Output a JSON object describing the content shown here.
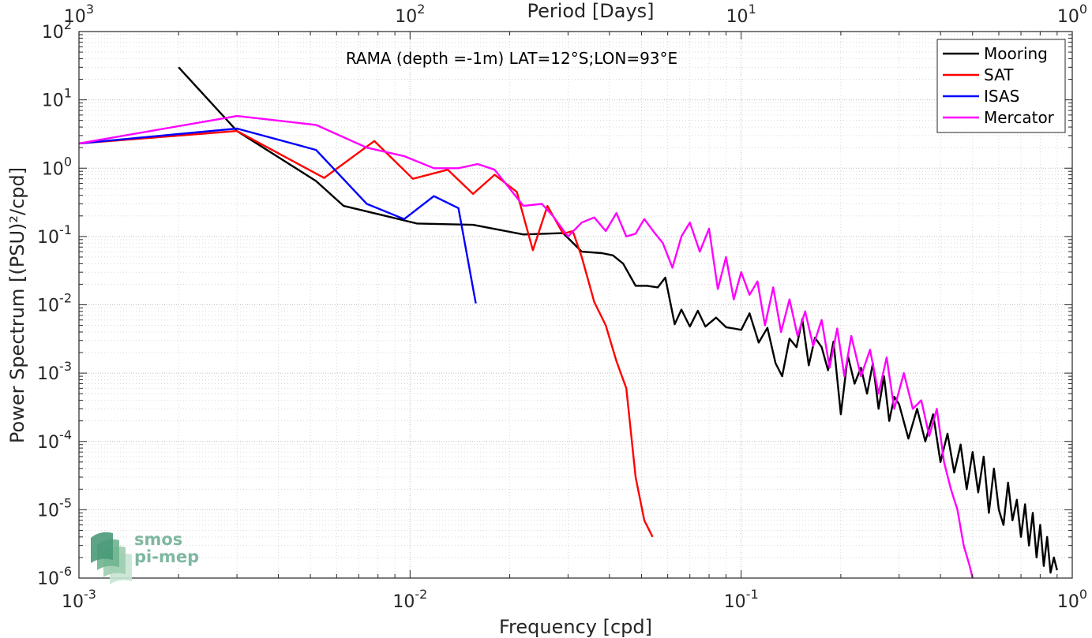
{
  "chart_data": {
    "type": "line",
    "title": "RAMA (depth =-1m) LAT=12°S;LON=93°E",
    "xlabel": "Frequency [cpd]",
    "ylabel": "Power Spectrum [(PSU)²/cpd]",
    "top_xlabel": "Period [Days]",
    "x_scale": "log",
    "y_scale": "log",
    "xlim": [
      0.001,
      1
    ],
    "ylim": [
      1e-06,
      100
    ],
    "top_xlim": [
      1000,
      1
    ],
    "grid": true,
    "legend_position": "top-right",
    "x_ticks": [
      {
        "value": 0.001,
        "base": "10",
        "exp": "-3"
      },
      {
        "value": 0.01,
        "base": "10",
        "exp": "-2"
      },
      {
        "value": 0.1,
        "base": "10",
        "exp": "-1"
      },
      {
        "value": 1,
        "base": "10",
        "exp": "0"
      }
    ],
    "top_ticks": [
      {
        "value": 1000,
        "base": "10",
        "exp": "3"
      },
      {
        "value": 100,
        "base": "10",
        "exp": "2"
      },
      {
        "value": 10,
        "base": "10",
        "exp": "1"
      },
      {
        "value": 1,
        "base": "10",
        "exp": "0"
      }
    ],
    "y_ticks": [
      {
        "value": 100,
        "base": "10",
        "exp": "2"
      },
      {
        "value": 10,
        "base": "10",
        "exp": "1"
      },
      {
        "value": 1,
        "base": "10",
        "exp": "0"
      },
      {
        "value": 0.1,
        "base": "10",
        "exp": "-1"
      },
      {
        "value": 0.01,
        "base": "10",
        "exp": "-2"
      },
      {
        "value": 0.001,
        "base": "10",
        "exp": "-3"
      },
      {
        "value": 0.0001,
        "base": "10",
        "exp": "-4"
      },
      {
        "value": 1e-05,
        "base": "10",
        "exp": "-5"
      },
      {
        "value": 1e-06,
        "base": "10",
        "exp": "-6"
      }
    ],
    "series": [
      {
        "name": "Mooring",
        "color": "#000000",
        "x": [
          0.002,
          0.003,
          0.0052,
          0.0063,
          0.0105,
          0.0155,
          0.022,
          0.029,
          0.033,
          0.038,
          0.041,
          0.044,
          0.048,
          0.052,
          0.056,
          0.059,
          0.063,
          0.066,
          0.07,
          0.074,
          0.078,
          0.084,
          0.09,
          0.095,
          0.1,
          0.106,
          0.113,
          0.12,
          0.127,
          0.133,
          0.14,
          0.147,
          0.153,
          0.16,
          0.167,
          0.175,
          0.183,
          0.19,
          0.2,
          0.21,
          0.22,
          0.23,
          0.24,
          0.25,
          0.26,
          0.27,
          0.28,
          0.29,
          0.3,
          0.32,
          0.34,
          0.36,
          0.38,
          0.4,
          0.42,
          0.44,
          0.46,
          0.48,
          0.5,
          0.52,
          0.54,
          0.56,
          0.58,
          0.6,
          0.62,
          0.64,
          0.66,
          0.68,
          0.7,
          0.72,
          0.74,
          0.76,
          0.78,
          0.8,
          0.82,
          0.84,
          0.86,
          0.88,
          0.9
        ],
        "y": [
          30,
          3.5,
          0.65,
          0.28,
          0.155,
          0.148,
          0.107,
          0.112,
          0.06,
          0.057,
          0.053,
          0.04,
          0.019,
          0.019,
          0.018,
          0.025,
          0.0052,
          0.0085,
          0.0048,
          0.0082,
          0.0048,
          0.0065,
          0.0047,
          0.0045,
          0.0043,
          0.0075,
          0.0028,
          0.0046,
          0.0014,
          0.0009,
          0.0032,
          0.0024,
          0.0062,
          0.0013,
          0.0033,
          0.0024,
          0.0011,
          0.0029,
          0.00025,
          0.0018,
          0.0007,
          0.0012,
          0.0005,
          0.0014,
          0.0003,
          0.0009,
          0.0002,
          0.00045,
          0.00035,
          0.00011,
          0.0003,
          0.0001,
          0.00025,
          5e-05,
          0.00013,
          3.5e-05,
          9e-05,
          2e-05,
          7e-05,
          1.8e-05,
          6e-05,
          9e-06,
          4e-05,
          1e-05,
          6e-06,
          2.5e-05,
          7e-06,
          1.4e-05,
          4e-06,
          1.2e-05,
          3e-06,
          9e-06,
          2e-06,
          6e-06,
          1.5e-06,
          4e-06,
          1.2e-06,
          2e-06,
          1.3e-06
        ]
      },
      {
        "name": "SAT",
        "color": "#ff0000",
        "x": [
          0.001,
          0.003,
          0.0055,
          0.0078,
          0.0102,
          0.013,
          0.0155,
          0.018,
          0.021,
          0.0235,
          0.026,
          0.029,
          0.031,
          0.033,
          0.036,
          0.039,
          0.042,
          0.045,
          0.048,
          0.051,
          0.054
        ],
        "y": [
          2.3,
          3.5,
          0.72,
          2.5,
          0.7,
          0.95,
          0.42,
          0.8,
          0.45,
          0.063,
          0.28,
          0.11,
          0.12,
          0.05,
          0.011,
          0.005,
          0.0015,
          0.0006,
          3e-05,
          7e-06,
          4e-06
        ]
      },
      {
        "name": "ISAS",
        "color": "#0000ff",
        "x": [
          0.001,
          0.003,
          0.0052,
          0.0074,
          0.0096,
          0.0118,
          0.014,
          0.0158
        ],
        "y": [
          2.3,
          3.8,
          1.85,
          0.3,
          0.18,
          0.39,
          0.26,
          0.0105
        ]
      },
      {
        "name": "Mercator",
        "color": "#ff00ff",
        "x": [
          0.001,
          0.003,
          0.0052,
          0.0074,
          0.0096,
          0.0118,
          0.014,
          0.016,
          0.018,
          0.02,
          0.022,
          0.025,
          0.027,
          0.03,
          0.033,
          0.036,
          0.039,
          0.042,
          0.045,
          0.048,
          0.051,
          0.055,
          0.058,
          0.062,
          0.066,
          0.07,
          0.075,
          0.08,
          0.085,
          0.09,
          0.095,
          0.1,
          0.106,
          0.112,
          0.118,
          0.125,
          0.132,
          0.14,
          0.148,
          0.156,
          0.165,
          0.175,
          0.185,
          0.195,
          0.205,
          0.215,
          0.23,
          0.245,
          0.26,
          0.275,
          0.29,
          0.31,
          0.33,
          0.35,
          0.37,
          0.39,
          0.41,
          0.43,
          0.45,
          0.47,
          0.49,
          0.5
        ],
        "y": [
          2.3,
          5.8,
          4.3,
          2.0,
          1.5,
          1.0,
          1.0,
          1.15,
          0.95,
          0.5,
          0.28,
          0.3,
          0.2,
          0.1,
          0.16,
          0.19,
          0.12,
          0.22,
          0.1,
          0.11,
          0.18,
          0.11,
          0.08,
          0.035,
          0.1,
          0.16,
          0.06,
          0.13,
          0.017,
          0.05,
          0.012,
          0.03,
          0.014,
          0.022,
          0.005,
          0.018,
          0.004,
          0.012,
          0.0035,
          0.008,
          0.0025,
          0.006,
          0.0012,
          0.0045,
          0.0009,
          0.0035,
          0.0009,
          0.0022,
          0.0005,
          0.0017,
          0.0003,
          0.001,
          0.0003,
          0.0004,
          0.00012,
          0.0003,
          5e-05,
          2e-05,
          1e-05,
          3e-06,
          1.5e-06,
          1e-06
        ]
      }
    ]
  },
  "logo": {
    "line1": "smos",
    "line2": "pi-mep",
    "colors": [
      "#4a9a78",
      "#6fb48f",
      "#9dcdb0",
      "#c8e4d3"
    ]
  }
}
